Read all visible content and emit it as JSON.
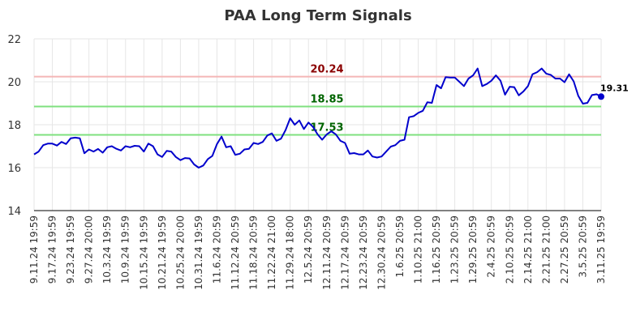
{
  "chart_data": {
    "type": "line",
    "title": "PAA Long Term Signals",
    "xlabel": "",
    "ylabel": "",
    "ylim": [
      14,
      22
    ],
    "y_ticks": [
      14,
      16,
      18,
      20,
      22
    ],
    "grid": true,
    "x_tick_labels": [
      "9.11.24 19:59",
      "9.17.24 19:59",
      "9.23.24 19:59",
      "9.27.24 20:00",
      "10.3.24 19:59",
      "10.9.24 19:59",
      "10.15.24 19:59",
      "10.21.24 19:59",
      "10.25.24 20:00",
      "10.31.24 19:59",
      "11.6.24 20:59",
      "11.12.24 20:59",
      "11.18.24 20:59",
      "11.22.24 21:00",
      "11.29.24 18:00",
      "12.5.24 20:59",
      "12.11.24 20:59",
      "12.17.24 20:59",
      "12.23.24 20:59",
      "12.30.24 20:59",
      "1.6.25 20:59",
      "1.10.25 21:00",
      "1.16.25 20:59",
      "1.23.25 20:59",
      "1.29.25 20:59",
      "2.4.25 20:59",
      "2.10.25 20:59",
      "2.14.25 21:00",
      "2.21.25 21:00",
      "2.27.25 20:59",
      "3.5.25 20:59",
      "3.11.25 19:59"
    ],
    "reference_lines": [
      {
        "value": 20.24,
        "label": "20.24",
        "color": "#f4b6b6",
        "label_color": "#8b0000"
      },
      {
        "value": 18.85,
        "label": "18.85",
        "color": "#7fe07f",
        "label_color": "#006400"
      },
      {
        "value": 17.53,
        "label": "17.53",
        "color": "#7fe07f",
        "label_color": "#006400"
      }
    ],
    "series": [
      {
        "color": "#0000cc",
        "values": [
          16.62,
          16.75,
          17.05,
          17.12,
          17.12,
          17.03,
          17.2,
          17.1,
          17.37,
          17.4,
          17.37,
          16.67,
          16.85,
          16.75,
          16.87,
          16.7,
          16.95,
          17.0,
          16.88,
          16.8,
          17.0,
          16.95,
          17.02,
          17.0,
          16.75,
          17.12,
          17.0,
          16.62,
          16.5,
          16.78,
          16.75,
          16.5,
          16.35,
          16.45,
          16.43,
          16.15,
          16.0,
          16.1,
          16.4,
          16.55,
          17.1,
          17.45,
          16.95,
          17.0,
          16.6,
          16.65,
          16.85,
          16.88,
          17.15,
          17.1,
          17.2,
          17.5,
          17.6,
          17.25,
          17.35,
          17.75,
          18.3,
          18.0,
          18.2,
          17.8,
          18.1,
          17.9,
          17.55,
          17.3,
          17.55,
          17.7,
          17.55,
          17.25,
          17.15,
          16.65,
          16.68,
          16.62,
          16.62,
          16.8,
          16.52,
          16.47,
          16.52,
          16.75,
          16.98,
          17.05,
          17.25,
          17.3,
          18.35,
          18.4,
          18.55,
          18.65,
          19.05,
          19.02,
          19.85,
          19.7,
          20.22,
          20.2,
          20.2,
          20.0,
          19.8,
          20.15,
          20.3,
          20.62,
          19.8,
          19.9,
          20.05,
          20.3,
          20.05,
          19.4,
          19.77,
          19.75,
          19.37,
          19.55,
          19.8,
          20.35,
          20.45,
          20.62,
          20.38,
          20.32,
          20.15,
          20.15,
          19.98,
          20.35,
          20.02,
          19.35,
          18.98,
          19.02,
          19.38,
          19.42,
          19.31
        ],
        "last_label": "19.31"
      }
    ]
  }
}
